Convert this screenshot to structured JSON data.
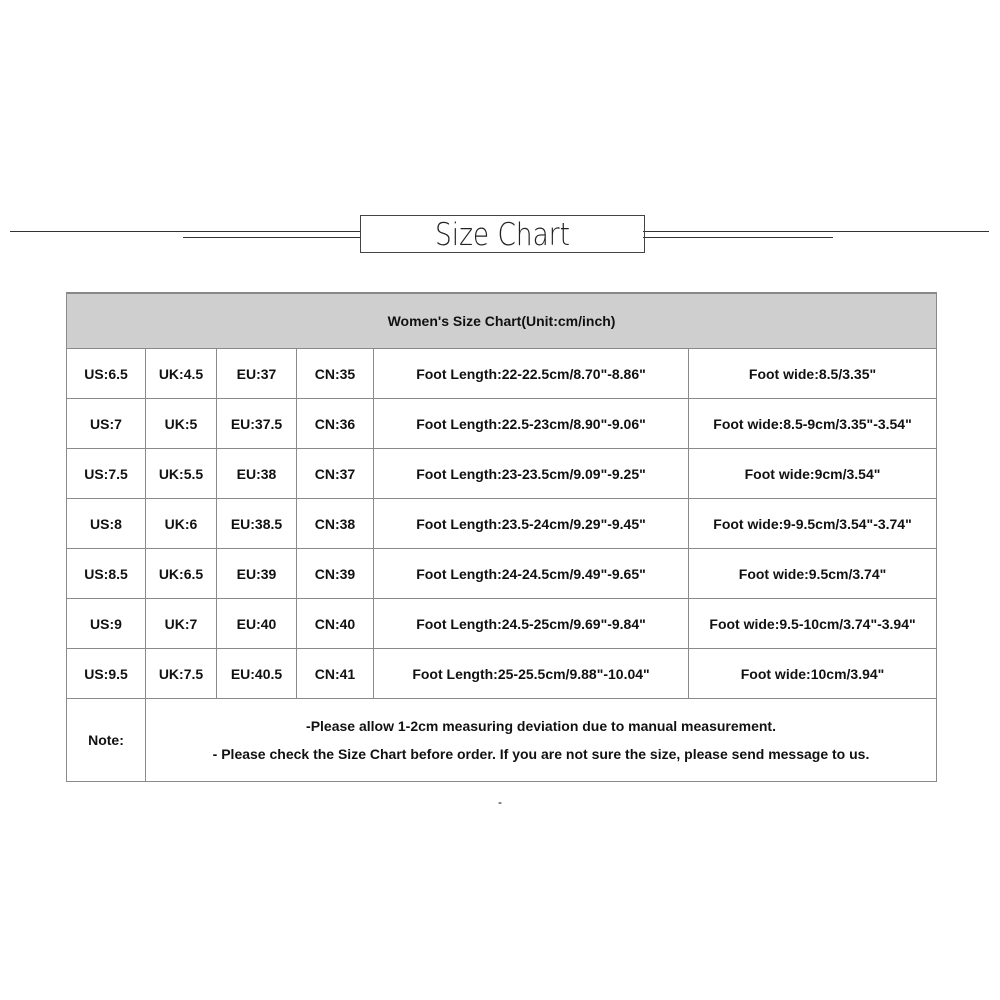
{
  "title": "Size Chart",
  "table": {
    "header": "Women's Size Chart(Unit:cm/inch)",
    "rows": [
      [
        "US:6.5",
        "UK:4.5",
        "EU:37",
        "CN:35",
        "Foot Length:22-22.5cm/8.70\"-8.86\"",
        "Foot wide:8.5/3.35\""
      ],
      [
        "US:7",
        "UK:5",
        "EU:37.5",
        "CN:36",
        "Foot Length:22.5-23cm/8.90\"-9.06\"",
        "Foot wide:8.5-9cm/3.35\"-3.54\""
      ],
      [
        "US:7.5",
        "UK:5.5",
        "EU:38",
        "CN:37",
        "Foot Length:23-23.5cm/9.09\"-9.25\"",
        "Foot wide:9cm/3.54\""
      ],
      [
        "US:8",
        "UK:6",
        "EU:38.5",
        "CN:38",
        "Foot Length:23.5-24cm/9.29\"-9.45\"",
        "Foot wide:9-9.5cm/3.54\"-3.74\""
      ],
      [
        "US:8.5",
        "UK:6.5",
        "EU:39",
        "CN:39",
        "Foot Length:24-24.5cm/9.49\"-9.65\"",
        "Foot wide:9.5cm/3.74\""
      ],
      [
        "US:9",
        "UK:7",
        "EU:40",
        "CN:40",
        "Foot Length:24.5-25cm/9.69\"-9.84\"",
        "Foot wide:9.5-10cm/3.74\"-3.94\""
      ],
      [
        "US:9.5",
        "UK:7.5",
        "EU:40.5",
        "CN:41",
        "Foot Length:25-25.5cm/9.88\"-10.04\"",
        "Foot wide:10cm/3.94\""
      ]
    ],
    "note_label": "Note:",
    "notes": [
      "-Please allow 1-2cm measuring deviation due to manual measurement.",
      "- Please check the Size Chart before order. If you are not sure the size, please send message to us."
    ]
  },
  "footer_dash": "-"
}
